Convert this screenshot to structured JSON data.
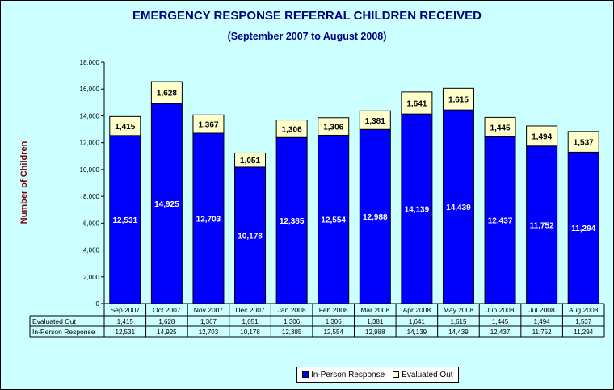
{
  "chart_data": {
    "type": "bar",
    "stacked": true,
    "title": "EMERGENCY RESPONSE REFERRAL CHILDREN RECEIVED",
    "subtitle": "(September 2007 to August 2008)",
    "ylabel": "Number of Children",
    "ylim": [
      0,
      18000
    ],
    "yticks": [
      "0",
      "2,000",
      "4,000",
      "6,000",
      "8,000",
      "10,000",
      "12,000",
      "14,000",
      "16,000",
      "18,000"
    ],
    "categories": [
      "Sep 2007",
      "Oct 2007",
      "Nov 2007",
      "Dec 2007",
      "Jan 2008",
      "Feb 2008",
      "Mar 2008",
      "Apr 2008",
      "May 2008",
      "Jun 2008",
      "Jul 2008",
      "Aug 2008"
    ],
    "series": [
      {
        "name": "In-Person Response",
        "color": "#0000ff",
        "values": [
          12531,
          14925,
          12703,
          10178,
          12385,
          12554,
          12988,
          14139,
          14439,
          12437,
          11752,
          11294
        ],
        "labels": [
          "12,531",
          "14,925",
          "12,703",
          "10,178",
          "12,385",
          "12,554",
          "12,988",
          "14,139",
          "14,439",
          "12,437",
          "11,752",
          "11,294"
        ]
      },
      {
        "name": "Evaluated Out",
        "color": "#ffffcc",
        "values": [
          1415,
          1628,
          1367,
          1051,
          1306,
          1306,
          1381,
          1641,
          1615,
          1445,
          1494,
          1537
        ],
        "labels": [
          "1,415",
          "1,628",
          "1,367",
          "1,051",
          "1,306",
          "1,306",
          "1,381",
          "1,641",
          "1,615",
          "1,445",
          "1,494",
          "1,537"
        ]
      }
    ],
    "grid": false,
    "legend": "bottom",
    "data_table": true,
    "table_rows": [
      "Evaluated Out",
      "In-Person Response"
    ]
  }
}
